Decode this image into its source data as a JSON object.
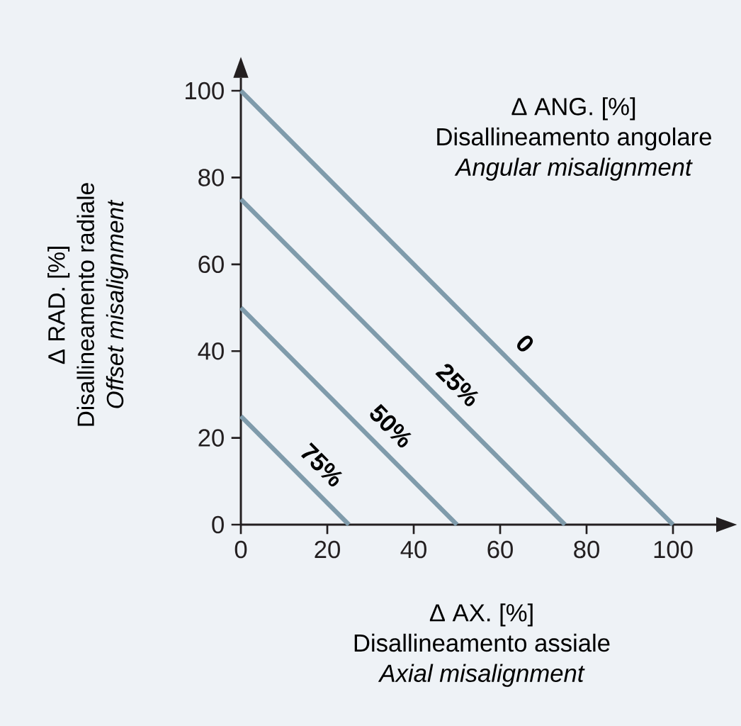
{
  "chart_data": {
    "type": "line",
    "xlabel": "Δ AX. [%]",
    "ylabel": "Δ RAD. [%]",
    "legend_title": "Δ ANG. [%]",
    "annotations": [
      "Disallineamento assiale",
      "Axial misalignment",
      "Disallineamento radiale",
      "Offset misalignment",
      "Disallineamento angolare",
      "Angular misalignment"
    ],
    "series": [
      {
        "name": "0",
        "color": "#7f9bab",
        "x": [
          0,
          100
        ],
        "values": [
          100,
          0
        ]
      },
      {
        "name": "25%",
        "color": "#7f9bab",
        "x": [
          0,
          75
        ],
        "values": [
          75,
          0
        ]
      },
      {
        "name": "50%",
        "color": "#7f9bab",
        "x": [
          0,
          50
        ],
        "values": [
          50,
          0
        ]
      },
      {
        "name": "75%",
        "color": "#7f9bab",
        "x": [
          0,
          25
        ],
        "values": [
          25,
          0
        ]
      }
    ],
    "xlim": [
      0,
      110
    ],
    "ylim": [
      0,
      103
    ],
    "xticks": [
      0,
      20,
      40,
      60,
      80,
      100
    ],
    "yticks": [
      0,
      20,
      40,
      60,
      80,
      100
    ],
    "grid": false,
    "marker": "none",
    "line_style": "solid"
  }
}
